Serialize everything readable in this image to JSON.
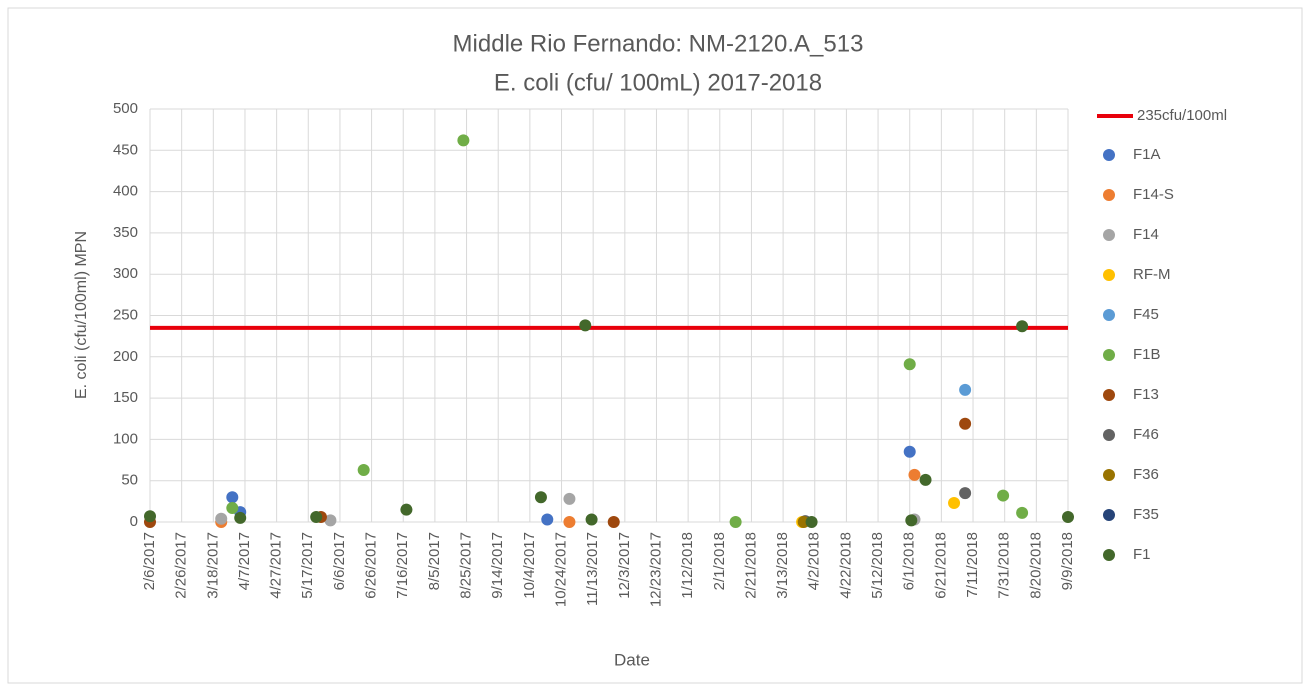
{
  "chart_data": {
    "type": "scatter",
    "title": "Middle Rio Fernando:  NM-2120.A_513",
    "subtitle": "E. coli (cfu/ 100mL) 2017-2018",
    "x_label": "Date",
    "y_label": "E. coli (cfu/100ml) MPN",
    "xlim": [
      "2/6/2017",
      "9/9/2018"
    ],
    "xticks": [
      "2/6/2017",
      "2/26/2017",
      "3/18/2017",
      "4/7/2017",
      "4/27/2017",
      "5/17/2017",
      "6/6/2017",
      "6/26/2017",
      "7/16/2017",
      "8/5/2017",
      "8/25/2017",
      "9/14/2017",
      "10/4/2017",
      "10/24/2017",
      "11/13/2017",
      "12/3/2017",
      "12/23/2017",
      "1/12/2018",
      "2/1/2018",
      "2/21/2018",
      "3/13/2018",
      "4/2/2018",
      "4/22/2018",
      "5/12/2018",
      "6/1/2018",
      "6/21/2018",
      "7/11/2018",
      "7/31/2018",
      "8/20/2018",
      "9/9/2018"
    ],
    "ylim": [
      0,
      500
    ],
    "yticks": [
      0,
      50,
      100,
      150,
      200,
      250,
      300,
      350,
      400,
      450,
      500
    ],
    "grid": true,
    "legend": "right",
    "reference_line": {
      "name": "235cfu/100ml",
      "value": 235,
      "color": "#e8000b"
    },
    "series": [
      {
        "name": "F1A",
        "color": "#4472c4",
        "x": [
          "3/30/2017",
          "4/4/2017",
          "10/15/2017",
          "6/1/2018"
        ],
        "values": [
          30,
          12,
          3,
          85
        ]
      },
      {
        "name": "F14-S",
        "color": "#ed7d31",
        "x": [
          "3/23/2017",
          "10/29/2017",
          "6/4/2018"
        ],
        "values": [
          0,
          0,
          57
        ]
      },
      {
        "name": "F14",
        "color": "#a5a5a5",
        "x": [
          "3/23/2017",
          "5/31/2017",
          "10/29/2017",
          "6/4/2018"
        ],
        "values": [
          4,
          2,
          28,
          3
        ]
      },
      {
        "name": "RF-M",
        "color": "#ffc000",
        "x": [
          "3/25/2018",
          "6/29/2018"
        ],
        "values": [
          0,
          23
        ]
      },
      {
        "name": "F45",
        "color": "#5b9bd5",
        "x": [
          "7/6/2018"
        ],
        "values": [
          160
        ]
      },
      {
        "name": "F1B",
        "color": "#70ad47",
        "x": [
          "3/30/2017",
          "6/21/2017",
          "8/23/2017",
          "2/11/2018",
          "6/1/2018",
          "7/30/2018",
          "8/11/2018"
        ],
        "values": [
          17,
          63,
          462,
          0,
          191,
          32,
          11
        ]
      },
      {
        "name": "F13",
        "color": "#9e480e",
        "x": [
          "2/6/2017",
          "5/25/2017",
          "11/26/2017",
          "7/6/2018"
        ],
        "values": [
          0,
          6,
          0,
          119
        ]
      },
      {
        "name": "F46",
        "color": "#636363",
        "x": [
          "3/27/2018",
          "7/6/2018"
        ],
        "values": [
          1,
          35
        ]
      },
      {
        "name": "F36",
        "color": "#997300",
        "x": [
          "3/26/2018"
        ],
        "values": [
          0
        ]
      },
      {
        "name": "F35",
        "color": "#264478",
        "x": [],
        "values": []
      },
      {
        "name": "F1",
        "color": "#43682b",
        "x": [
          "2/6/2017",
          "4/4/2017",
          "5/22/2017",
          "7/18/2017",
          "10/11/2017",
          "11/8/2017",
          "11/12/2017",
          "3/31/2018",
          "6/2/2018",
          "6/11/2018",
          "8/11/2018",
          "9/9/2018"
        ],
        "values": [
          7,
          5,
          6,
          15,
          30,
          238,
          3,
          0,
          2,
          51,
          237,
          6
        ]
      }
    ]
  }
}
